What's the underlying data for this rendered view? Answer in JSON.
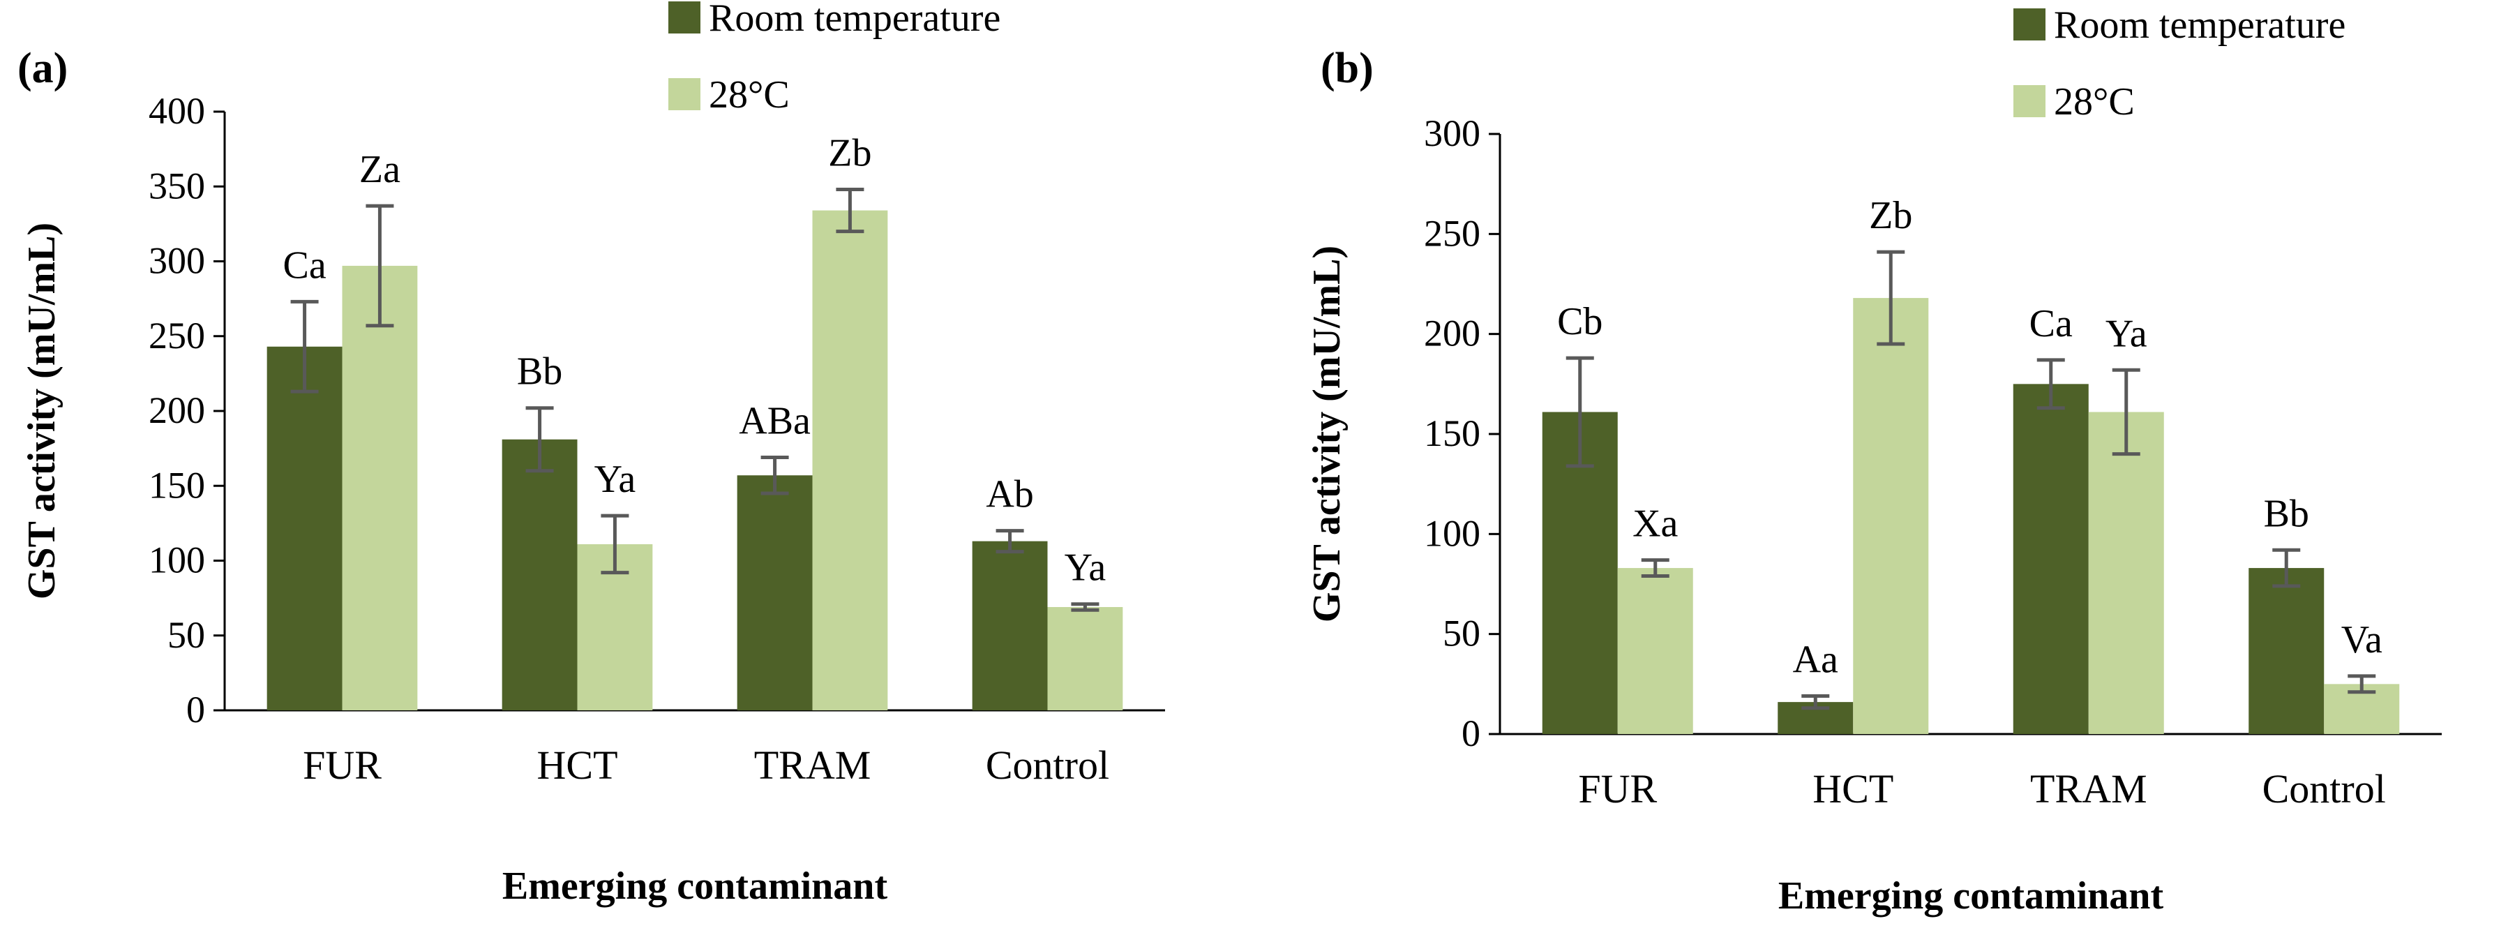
{
  "chart_data": [
    {
      "panel_label": "(a)",
      "type": "bar",
      "categories": [
        "FUR",
        "HCT",
        "TRAM",
        "Control"
      ],
      "series": [
        {
          "name": "Room temperature",
          "color": "#4e6128",
          "values": [
            243,
            181,
            157,
            113
          ],
          "errors": [
            30,
            21,
            12,
            7
          ],
          "labels": [
            "Ca",
            "Bb",
            "ABa",
            "Ab"
          ]
        },
        {
          "name": "28°C",
          "color": "#c3d69b",
          "values": [
            297,
            111,
            334,
            69
          ],
          "errors": [
            40,
            19,
            14,
            2
          ],
          "labels": [
            "Za",
            "Ya",
            "Zb",
            "Ya"
          ]
        }
      ],
      "xlabel": "Emerging contaminant",
      "ylabel": "GST activity (mU/mL)",
      "ylim": [
        0,
        400
      ],
      "yticks": [
        "0",
        "50",
        "100",
        "150",
        "200",
        "250",
        "300",
        "350",
        "400"
      ],
      "legend_position": "top"
    },
    {
      "panel_label": "(b)",
      "type": "bar",
      "categories": [
        "FUR",
        "HCT",
        "TRAM",
        "Control"
      ],
      "series": [
        {
          "name": "Room temperature",
          "color": "#4e6128",
          "values": [
            161,
            16,
            175,
            83
          ],
          "errors": [
            27,
            3,
            12,
            9
          ],
          "labels": [
            "Cb",
            "Aa",
            "Ca",
            "Bb"
          ]
        },
        {
          "name": "28°C",
          "color": "#c3d69b",
          "values": [
            83,
            218,
            161,
            25
          ],
          "errors": [
            4,
            23,
            21,
            4
          ],
          "labels": [
            "Xa",
            "Zb",
            "Ya",
            "Va"
          ]
        }
      ],
      "xlabel": "Emerging contaminant",
      "ylabel": "GST activity (mU/mL)",
      "ylim": [
        0,
        300
      ],
      "yticks": [
        "0",
        "50",
        "100",
        "150",
        "200",
        "250",
        "300"
      ],
      "legend_position": "top"
    }
  ]
}
